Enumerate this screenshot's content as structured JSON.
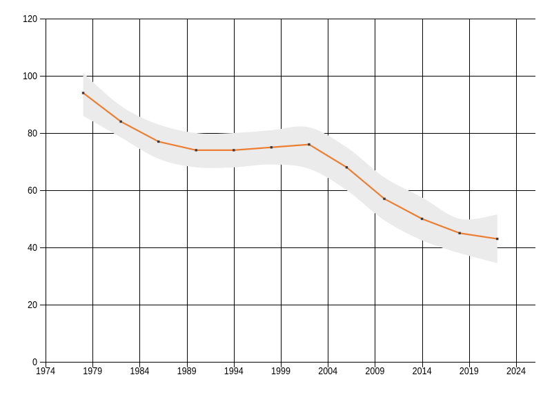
{
  "chart_data": {
    "type": "line",
    "title": "",
    "xlabel": "",
    "ylabel": "",
    "x": [
      1978,
      1982,
      1986,
      1990,
      1994,
      1998,
      2002,
      2006,
      2010,
      2014,
      2018,
      2022
    ],
    "series": [
      {
        "name": "value",
        "values": [
          94,
          84,
          77,
          74,
          74,
          75,
          76,
          68,
          57,
          50,
          45,
          43
        ]
      },
      {
        "name": "band_upper",
        "values": [
          101,
          89.5,
          83,
          80,
          80,
          81,
          82,
          75,
          64.5,
          57.5,
          50,
          51.5
        ]
      },
      {
        "name": "band_lower",
        "values": [
          86,
          78.5,
          71,
          68,
          68,
          69,
          67.5,
          60,
          49.5,
          42.5,
          38,
          34.5
        ]
      }
    ],
    "x_ticks": [
      "1974",
      "1979",
      "1984",
      "1989",
      "1994",
      "1999",
      "2004",
      "2009",
      "2014",
      "2019",
      "2024"
    ],
    "y_ticks": [
      "0",
      "20",
      "40",
      "60",
      "80",
      "100",
      "120"
    ],
    "xlim": [
      1974,
      2024
    ],
    "ylim": [
      0,
      120
    ],
    "grid": true,
    "legend": false,
    "marker": "square",
    "band_style": "filled-confidence-interval",
    "colors": {
      "line": "#ED7D31",
      "marker": "#3A3A3A",
      "band": "#EBEBEB",
      "grid": "#000000",
      "text": "#000000",
      "background": "#FFFFFF"
    }
  }
}
